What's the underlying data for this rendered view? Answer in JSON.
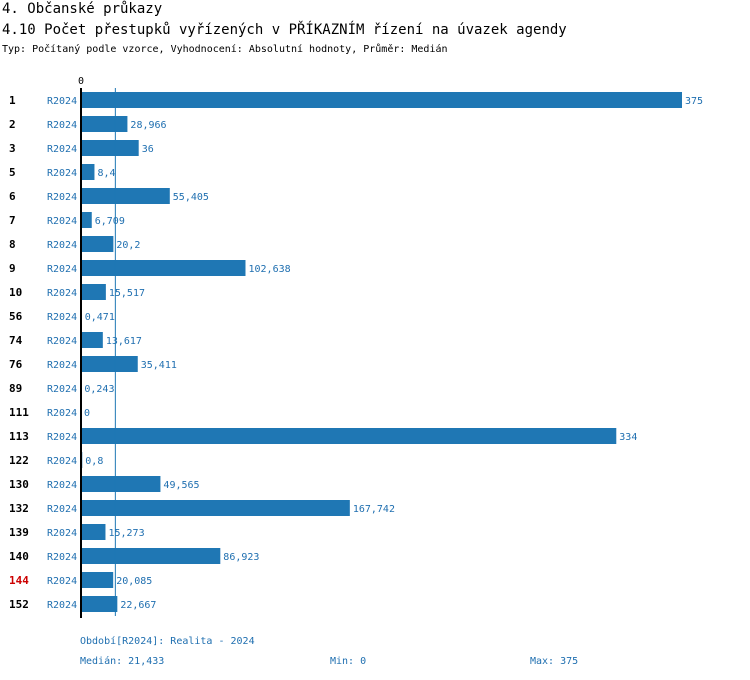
{
  "header": {
    "section_title": "4. Občanské průkazy",
    "chart_title": "4.10 Počet přestupků vyřízených v PŘÍKAZNÍM řízení na úvazek agendy",
    "subtitle": "Typ: Počítaný podle vzorce, Vyhodnocení: Absolutní hodnoty, Průměr: Medián"
  },
  "footer": {
    "period": "Období[R2024]: Realita - 2024",
    "median": "Medián: 21,433",
    "min": "Min: 0",
    "max": "Max: 375"
  },
  "colors": {
    "bar": "#1f77b4",
    "text_blue": "#1f6fb0",
    "highlight": "#cc0000",
    "median_line": "#1f77b4"
  },
  "chart_data": {
    "type": "bar",
    "orientation": "horizontal",
    "title": "4.10 Počet přestupků vyřízených v PŘÍKAZNÍM řízení na úvazek agendy",
    "x_tick_labels": [
      "0"
    ],
    "xlim": [
      0,
      375
    ],
    "median": 21.433,
    "grid": false,
    "series_label": "R2024",
    "rows": [
      {
        "category": "1",
        "series": "R2024",
        "value": 375,
        "label": "375",
        "highlight": false
      },
      {
        "category": "2",
        "series": "R2024",
        "value": 28.966,
        "label": "28,966",
        "highlight": false
      },
      {
        "category": "3",
        "series": "R2024",
        "value": 36,
        "label": "36",
        "highlight": false
      },
      {
        "category": "5",
        "series": "R2024",
        "value": 8.4,
        "label": "8,4",
        "highlight": false
      },
      {
        "category": "6",
        "series": "R2024",
        "value": 55.405,
        "label": "55,405",
        "highlight": false
      },
      {
        "category": "7",
        "series": "R2024",
        "value": 6.709,
        "label": "6,709",
        "highlight": false
      },
      {
        "category": "8",
        "series": "R2024",
        "value": 20.2,
        "label": "20,2",
        "highlight": false
      },
      {
        "category": "9",
        "series": "R2024",
        "value": 102.638,
        "label": "102,638",
        "highlight": false
      },
      {
        "category": "10",
        "series": "R2024",
        "value": 15.517,
        "label": "15,517",
        "highlight": false
      },
      {
        "category": "56",
        "series": "R2024",
        "value": 0.471,
        "label": "0,471",
        "highlight": false
      },
      {
        "category": "74",
        "series": "R2024",
        "value": 13.617,
        "label": "13,617",
        "highlight": false
      },
      {
        "category": "76",
        "series": "R2024",
        "value": 35.411,
        "label": "35,411",
        "highlight": false
      },
      {
        "category": "89",
        "series": "R2024",
        "value": 0.243,
        "label": "0,243",
        "highlight": false
      },
      {
        "category": "111",
        "series": "R2024",
        "value": 0,
        "label": "0",
        "highlight": false
      },
      {
        "category": "113",
        "series": "R2024",
        "value": 334,
        "label": "334",
        "highlight": false
      },
      {
        "category": "122",
        "series": "R2024",
        "value": 0.8,
        "label": "0,8",
        "highlight": false
      },
      {
        "category": "130",
        "series": "R2024",
        "value": 49.565,
        "label": "49,565",
        "highlight": false
      },
      {
        "category": "132",
        "series": "R2024",
        "value": 167.742,
        "label": "167,742",
        "highlight": false
      },
      {
        "category": "139",
        "series": "R2024",
        "value": 15.273,
        "label": "15,273",
        "highlight": false
      },
      {
        "category": "140",
        "series": "R2024",
        "value": 86.923,
        "label": "86,923",
        "highlight": false
      },
      {
        "category": "144",
        "series": "R2024",
        "value": 20.085,
        "label": "20,085",
        "highlight": true
      },
      {
        "category": "152",
        "series": "R2024",
        "value": 22.667,
        "label": "22,667",
        "highlight": false
      }
    ]
  }
}
